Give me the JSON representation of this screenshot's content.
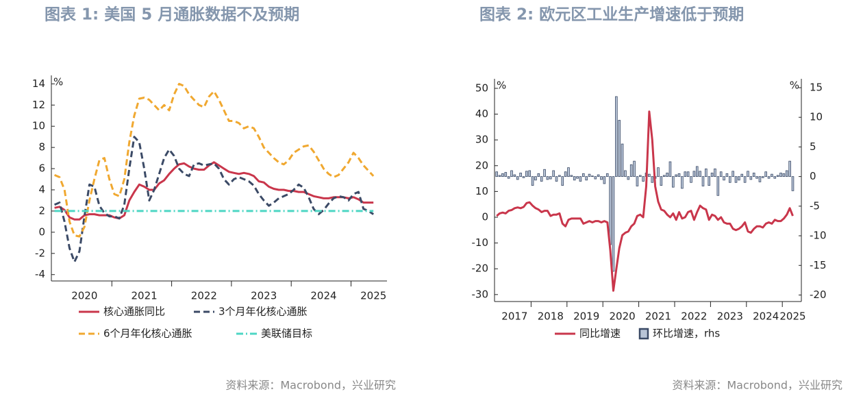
{
  "chart_data": [
    {
      "type": "line",
      "title": "图表 1: 美国 5 月通胀数据不及预期",
      "y_unit": "%",
      "source": "资料来源：Macrobond，兴业研究",
      "categories": [
        null,
        null,
        null,
        null,
        null,
        null,
        "2020",
        null,
        null,
        null,
        null,
        null,
        null,
        null,
        null,
        null,
        null,
        null,
        "2021",
        null,
        null,
        null,
        null,
        null,
        null,
        null,
        null,
        null,
        null,
        null,
        "2022",
        null,
        null,
        null,
        null,
        null,
        null,
        null,
        null,
        null,
        null,
        null,
        "2023",
        null,
        null,
        null,
        null,
        null,
        null,
        null,
        null,
        null,
        null,
        null,
        "2024",
        null,
        null,
        null,
        null,
        null,
        null,
        null,
        null,
        null,
        "2025"
      ],
      "ylim": [
        -4.6,
        14.8
      ],
      "yticks": [
        -4,
        -2,
        0,
        2,
        4,
        6,
        8,
        10,
        12,
        14
      ],
      "series": [
        {
          "name": "核心通胀同比",
          "color": "#c9364b",
          "dash": "solid",
          "values": [
            2.3,
            2.4,
            2.1,
            1.4,
            1.2,
            1.2,
            1.6,
            1.7,
            1.7,
            1.6,
            1.6,
            1.6,
            1.4,
            1.3,
            1.6,
            3.0,
            3.8,
            4.5,
            4.3,
            4.0,
            4.0,
            4.6,
            4.9,
            5.5,
            6.0,
            6.4,
            6.5,
            6.2,
            6.0,
            5.9,
            5.9,
            6.3,
            6.6,
            6.3,
            6.0,
            5.7,
            5.6,
            5.5,
            5.6,
            5.5,
            5.3,
            4.8,
            4.7,
            4.3,
            4.1,
            4.0,
            4.0,
            3.9,
            3.9,
            3.8,
            3.8,
            3.6,
            3.4,
            3.3,
            3.2,
            3.2,
            3.3,
            3.3,
            3.3,
            3.2,
            3.3,
            3.1,
            2.8,
            2.8,
            2.8
          ]
        },
        {
          "name": "3个月年化核心通胀",
          "color": "#3b4a66",
          "dash": "dashed",
          "values": [
            2.6,
            2.8,
            1.0,
            -1.5,
            -2.8,
            -1.8,
            1.5,
            4.5,
            4.3,
            2.5,
            1.8,
            1.5,
            1.5,
            1.3,
            2.6,
            6.0,
            9.0,
            8.5,
            6.0,
            3.0,
            4.0,
            5.5,
            7.0,
            7.8,
            7.2,
            6.0,
            5.5,
            5.3,
            6.4,
            6.5,
            6.3,
            6.4,
            6.5,
            6.0,
            5.0,
            4.5,
            5.0,
            5.2,
            5.0,
            4.8,
            4.4,
            3.6,
            3.0,
            2.5,
            2.8,
            3.2,
            3.4,
            3.6,
            4.0,
            4.5,
            4.2,
            3.3,
            2.2,
            1.7,
            2.1,
            2.7,
            3.2,
            3.4,
            3.3,
            3.0,
            3.6,
            3.8,
            2.2,
            2.0,
            1.7
          ]
        },
        {
          "name": "6个月年化核心通胀",
          "color": "#f0a830",
          "dash": "dashed",
          "values": [
            5.4,
            5.2,
            4.0,
            1.0,
            -0.3,
            -0.4,
            0.5,
            3.0,
            5.0,
            6.8,
            7.0,
            5.0,
            3.6,
            3.4,
            5.0,
            8.5,
            11.0,
            12.6,
            12.7,
            12.5,
            12.0,
            11.5,
            12.0,
            11.5,
            13.0,
            14.0,
            13.8,
            13.0,
            12.5,
            12.0,
            11.8,
            12.8,
            13.3,
            12.5,
            11.5,
            10.5,
            10.5,
            10.3,
            9.8,
            10.0,
            9.8,
            9.0,
            8.0,
            7.5,
            7.0,
            6.6,
            6.4,
            6.8,
            7.5,
            7.8,
            8.1,
            8.2,
            7.6,
            6.8,
            6.0,
            5.5,
            5.2,
            5.4,
            6.0,
            6.6,
            7.5,
            7.0,
            6.3,
            5.8,
            5.3
          ]
        },
        {
          "name": "美联储目标",
          "color": "#4dd6c4",
          "dash": "dashdot",
          "values": [
            2,
            2,
            2,
            2,
            2,
            2,
            2,
            2,
            2,
            2,
            2,
            2,
            2,
            2,
            2,
            2,
            2,
            2,
            2,
            2,
            2,
            2,
            2,
            2,
            2,
            2,
            2,
            2,
            2,
            2,
            2,
            2,
            2,
            2,
            2,
            2,
            2,
            2,
            2,
            2,
            2,
            2,
            2,
            2,
            2,
            2,
            2,
            2,
            2,
            2,
            2,
            2,
            2,
            2,
            2,
            2,
            2,
            2,
            2,
            2,
            2,
            2,
            2,
            2,
            2
          ]
        }
      ]
    },
    {
      "type": "bar_line",
      "title": "图表 2: 欧元区工业生产增速低于预期",
      "y_unit": "%",
      "y2_unit": "%",
      "source": "资料来源：Macrobond，兴业研究",
      "categories": [
        null,
        null,
        null,
        null,
        null,
        null,
        "2017",
        null,
        null,
        null,
        null,
        null,
        null,
        null,
        null,
        null,
        null,
        null,
        "2018",
        null,
        null,
        null,
        null,
        null,
        null,
        null,
        null,
        null,
        null,
        null,
        "2019",
        null,
        null,
        null,
        null,
        null,
        null,
        null,
        null,
        null,
        null,
        null,
        "2020",
        null,
        null,
        null,
        null,
        null,
        null,
        null,
        null,
        null,
        null,
        null,
        "2021",
        null,
        null,
        null,
        null,
        null,
        null,
        null,
        null,
        null,
        null,
        null,
        "2022",
        null,
        null,
        null,
        null,
        null,
        null,
        null,
        null,
        null,
        null,
        null,
        "2023",
        null,
        null,
        null,
        null,
        null,
        null,
        null,
        null,
        null,
        null,
        null,
        "2024",
        null,
        null,
        null,
        null,
        null,
        null,
        null,
        null,
        "2025"
      ],
      "ylim": [
        -32.7,
        53.7
      ],
      "yticks": [
        -30,
        -20,
        -10,
        0,
        10,
        20,
        30,
        40,
        50
      ],
      "y2lim": [
        -21.1,
        16.5
      ],
      "y2ticks": [
        -20,
        -15,
        -10,
        -5,
        0,
        5,
        10,
        15
      ],
      "series": [
        {
          "name": "同比增速",
          "color": "#c9364b",
          "kind": "line",
          "values": [
            0.5,
            1.5,
            1.8,
            1.5,
            2.5,
            2.8,
            3.5,
            3.8,
            3.5,
            4.0,
            5.5,
            5.8,
            4.5,
            3.5,
            3.0,
            2.0,
            2.5,
            2.5,
            0.5,
            1.0,
            1.0,
            1.5,
            -2.5,
            -3.5,
            -1.0,
            -0.5,
            -0.5,
            -0.5,
            -0.5,
            -2.5,
            -2.0,
            -1.5,
            -2.0,
            -1.5,
            -1.5,
            -2.0,
            -1.5,
            -2.0,
            -13.0,
            -28.5,
            -20.0,
            -12.0,
            -7.0,
            -6.0,
            -5.5,
            -3.5,
            -2.5,
            0.5,
            1.0,
            0.0,
            12.0,
            41.0,
            30.0,
            12.0,
            6.0,
            3.0,
            2.5,
            1.0,
            0.0,
            1.5,
            -1.0,
            2.0,
            -0.5,
            0.0,
            2.0,
            2.5,
            -1.0,
            2.0,
            4.5,
            3.5,
            3.0,
            -1.0,
            1.0,
            0.5,
            -1.0,
            0.0,
            -2.0,
            -2.5,
            -2.5,
            -4.5,
            -5.0,
            -4.5,
            -3.5,
            -2.0,
            -5.5,
            -6.0,
            -4.5,
            -3.5,
            -3.5,
            -4.0,
            -2.5,
            -2.0,
            -2.5,
            -1.0,
            -1.5,
            -1.5,
            -0.5,
            1.0,
            3.5,
            0.5
          ]
        },
        {
          "name": "环比增速，rhs",
          "color": "#3b4a66",
          "fill": "#b8c4d6",
          "kind": "bar",
          "axis": "y2",
          "values": [
            0.8,
            0.2,
            0.5,
            0.7,
            -0.3,
            1.0,
            0.3,
            -0.5,
            0.6,
            -0.2,
            0.9,
            1.0,
            -1.5,
            -0.6,
            0.5,
            -0.8,
            1.2,
            -0.5,
            -0.4,
            1.0,
            -0.8,
            0.2,
            -1.5,
            0.8,
            1.5,
            0.2,
            -0.6,
            -0.3,
            -0.8,
            0.5,
            -0.6,
            0.4,
            0.1,
            -0.4,
            0.3,
            -0.5,
            -1.2,
            0.5,
            -11.5,
            -16.0,
            13.5,
            9.5,
            5.5,
            1.0,
            -0.5,
            2.0,
            2.6,
            -1.6,
            0.2,
            -0.8,
            0.6,
            0.4,
            -1.0,
            -0.3,
            1.5,
            -1.5,
            0.2,
            0.6,
            2.5,
            -1.8,
            0.3,
            0.5,
            -2.0,
            0.8,
            0.8,
            -1.0,
            0.9,
            1.7,
            0.9,
            -1.6,
            1.3,
            -1.5,
            0.6,
            1.3,
            -3.2,
            0.8,
            -0.6,
            0.5,
            -1.0,
            0.9,
            -1.0,
            -0.6,
            0.4,
            -1.0,
            0.9,
            -0.5,
            0.6,
            -0.3,
            -0.9,
            -0.2,
            0.8,
            -0.3,
            0.4,
            -0.3,
            0.2,
            0.6,
            0.5,
            1.0,
            2.6,
            -2.4
          ]
        }
      ]
    }
  ]
}
